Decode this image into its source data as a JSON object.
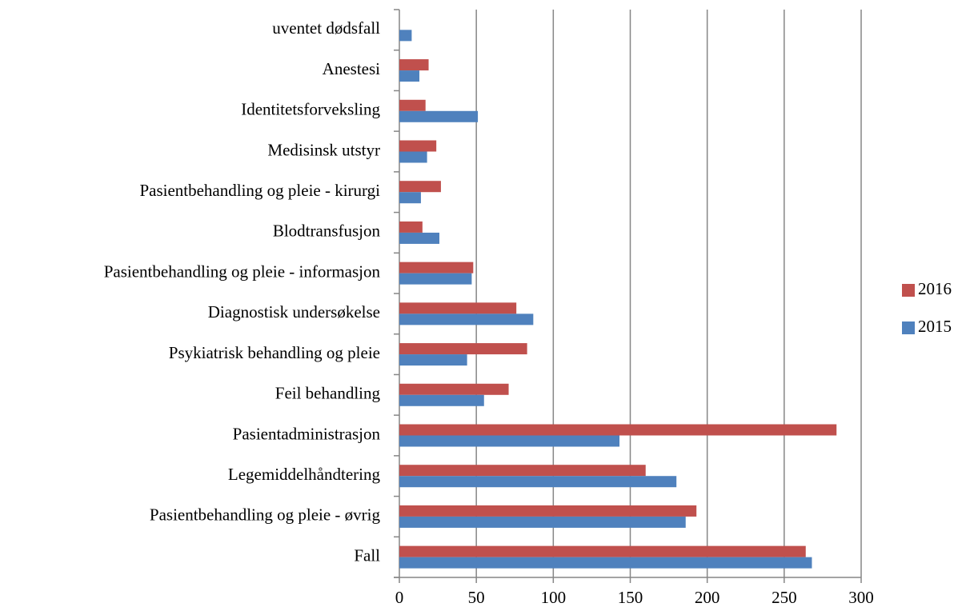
{
  "chart_data": {
    "type": "hbar",
    "categories": [
      "uventet dødsfall",
      "Anestesi",
      "Identitetsforveksling",
      "Medisinsk utstyr",
      "Pasientbehandling og pleie  - kirurgi",
      "Blodtransfusjon",
      "Pasientbehandling og pleie - informasjon",
      "Diagnostisk undersøkelse",
      "Psykiatrisk behandling og pleie",
      "Feil behandling",
      "Pasientadministrasjon",
      "Legemiddelhåndtering",
      "Pasientbehandling og pleie - øvrig",
      "Fall"
    ],
    "series": [
      {
        "name": "2016",
        "color": "#c0504d",
        "values": [
          null,
          19,
          17,
          24,
          27,
          15,
          48,
          76,
          83,
          71,
          284,
          160,
          193,
          264
        ]
      },
      {
        "name": "2015",
        "color": "#4f81bd",
        "values": [
          8,
          13,
          51,
          18,
          14,
          26,
          47,
          87,
          44,
          55,
          143,
          180,
          186,
          268
        ]
      }
    ],
    "xlim": [
      0,
      300
    ],
    "xticks": [
      0,
      50,
      100,
      150,
      200,
      250,
      300
    ],
    "grid": true,
    "legend": "right"
  }
}
